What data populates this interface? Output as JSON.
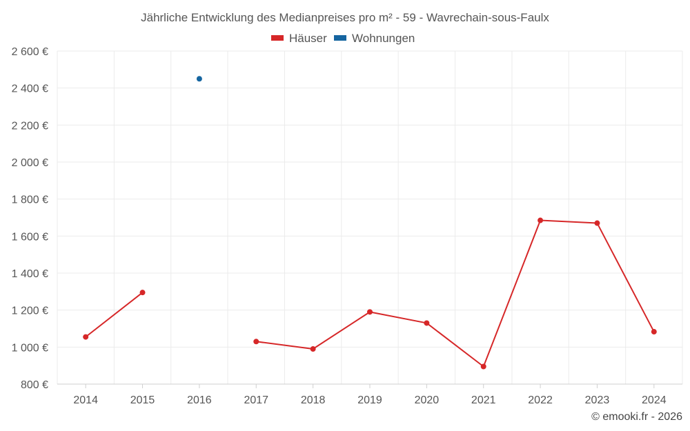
{
  "chart_data": {
    "type": "line",
    "title": "Jährliche Entwicklung des Medianpreises pro m² - 59 - Wavrechain-sous-Faulx",
    "xlabel": "",
    "ylabel": "",
    "categories": [
      "2014",
      "2015",
      "2016",
      "2017",
      "2018",
      "2019",
      "2020",
      "2021",
      "2022",
      "2023",
      "2024"
    ],
    "ylim": [
      800,
      2600
    ],
    "yticks": [
      800,
      1000,
      1200,
      1400,
      1600,
      1800,
      2000,
      2200,
      2400,
      2600
    ],
    "ytick_labels": [
      "800 €",
      "1 000 €",
      "1 200 €",
      "1 400 €",
      "1 600 €",
      "1 800 €",
      "2 000 €",
      "2 200 €",
      "2 400 €",
      "2 600 €"
    ],
    "grid": true,
    "legend_position": "top-center",
    "series": [
      {
        "name": "Häuser",
        "color": "#d62728",
        "values": [
          1055,
          1295,
          null,
          1030,
          990,
          1190,
          1130,
          895,
          1685,
          1670,
          1083
        ]
      },
      {
        "name": "Wohnungen",
        "color": "#1565a0",
        "values": [
          null,
          null,
          2450,
          null,
          null,
          null,
          null,
          null,
          null,
          null,
          null
        ]
      }
    ],
    "credit": "© emooki.fr - 2026"
  }
}
